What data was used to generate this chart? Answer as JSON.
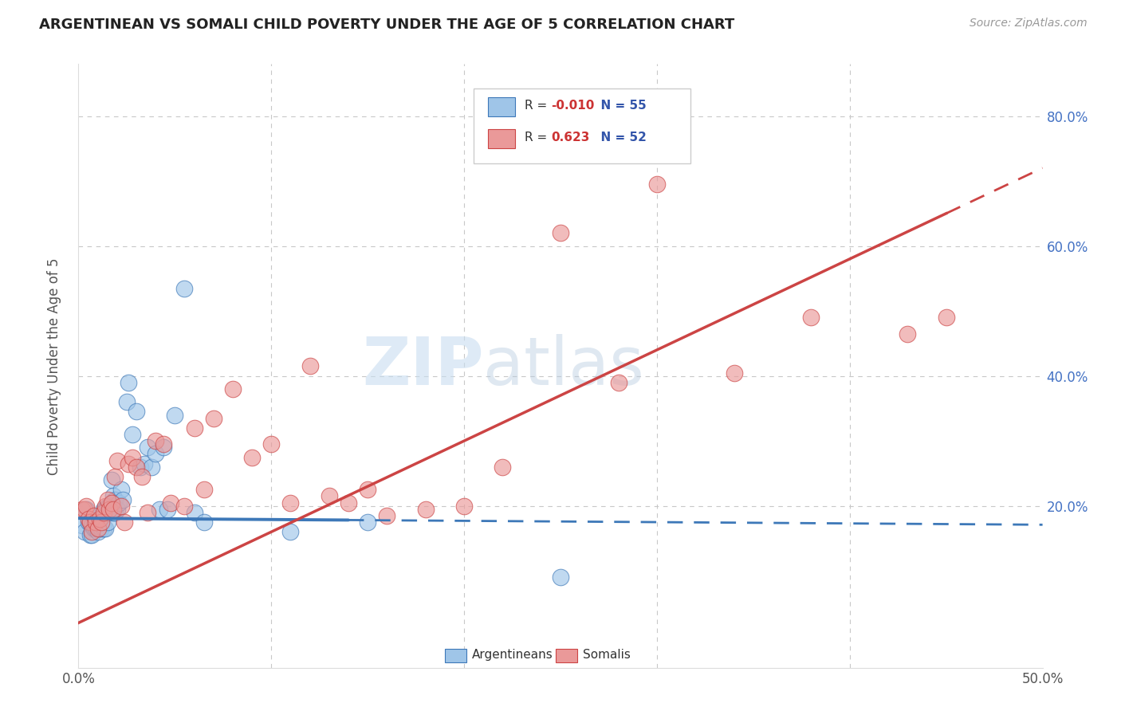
{
  "title": "ARGENTINEAN VS SOMALI CHILD POVERTY UNDER THE AGE OF 5 CORRELATION CHART",
  "source": "Source: ZipAtlas.com",
  "ylabel": "Child Poverty Under the Age of 5",
  "xlim": [
    0.0,
    0.5
  ],
  "ylim": [
    -0.05,
    0.88
  ],
  "color_arg": "#9fc5e8",
  "color_som": "#ea9999",
  "color_line_arg": "#3d78b8",
  "color_line_som": "#cc4444",
  "watermark_zip": "ZIP",
  "watermark_atlas": "atlas",
  "arg_x": [
    0.002,
    0.003,
    0.004,
    0.005,
    0.006,
    0.006,
    0.007,
    0.007,
    0.008,
    0.008,
    0.009,
    0.009,
    0.01,
    0.01,
    0.011,
    0.011,
    0.012,
    0.012,
    0.013,
    0.013,
    0.014,
    0.014,
    0.015,
    0.015,
    0.016,
    0.016,
    0.017,
    0.017,
    0.018,
    0.018,
    0.019,
    0.019,
    0.02,
    0.021,
    0.022,
    0.023,
    0.025,
    0.026,
    0.028,
    0.03,
    0.032,
    0.034,
    0.036,
    0.038,
    0.04,
    0.042,
    0.044,
    0.046,
    0.05,
    0.055,
    0.06,
    0.065,
    0.11,
    0.15,
    0.25
  ],
  "arg_y": [
    0.17,
    0.16,
    0.195,
    0.175,
    0.175,
    0.155,
    0.17,
    0.155,
    0.17,
    0.165,
    0.17,
    0.165,
    0.185,
    0.16,
    0.175,
    0.165,
    0.18,
    0.165,
    0.195,
    0.165,
    0.195,
    0.165,
    0.175,
    0.2,
    0.19,
    0.2,
    0.195,
    0.24,
    0.215,
    0.19,
    0.21,
    0.19,
    0.195,
    0.205,
    0.225,
    0.21,
    0.36,
    0.39,
    0.31,
    0.345,
    0.26,
    0.265,
    0.29,
    0.26,
    0.28,
    0.195,
    0.29,
    0.195,
    0.34,
    0.535,
    0.19,
    0.175,
    0.16,
    0.175,
    0.09
  ],
  "som_x": [
    0.002,
    0.003,
    0.004,
    0.005,
    0.006,
    0.007,
    0.008,
    0.009,
    0.01,
    0.011,
    0.012,
    0.013,
    0.014,
    0.015,
    0.016,
    0.017,
    0.018,
    0.019,
    0.02,
    0.022,
    0.024,
    0.026,
    0.028,
    0.03,
    0.033,
    0.036,
    0.04,
    0.044,
    0.048,
    0.055,
    0.06,
    0.065,
    0.07,
    0.08,
    0.09,
    0.1,
    0.11,
    0.12,
    0.13,
    0.14,
    0.15,
    0.16,
    0.18,
    0.2,
    0.22,
    0.25,
    0.28,
    0.3,
    0.34,
    0.38,
    0.43,
    0.45
  ],
  "som_y": [
    0.195,
    0.195,
    0.2,
    0.18,
    0.175,
    0.16,
    0.185,
    0.175,
    0.165,
    0.18,
    0.175,
    0.19,
    0.2,
    0.21,
    0.195,
    0.205,
    0.195,
    0.245,
    0.27,
    0.2,
    0.175,
    0.265,
    0.275,
    0.26,
    0.245,
    0.19,
    0.3,
    0.295,
    0.205,
    0.2,
    0.32,
    0.225,
    0.335,
    0.38,
    0.275,
    0.295,
    0.205,
    0.415,
    0.215,
    0.205,
    0.225,
    0.185,
    0.195,
    0.2,
    0.26,
    0.62,
    0.39,
    0.695,
    0.405,
    0.49,
    0.465,
    0.49
  ],
  "arg_line_x0": 0.0,
  "arg_line_x1": 0.14,
  "arg_line_xd": 0.5,
  "arg_line_y": 0.18,
  "som_line_x0": 0.0,
  "som_line_x1": 0.45,
  "som_line_y0": 0.0,
  "som_line_y1": 0.72
}
